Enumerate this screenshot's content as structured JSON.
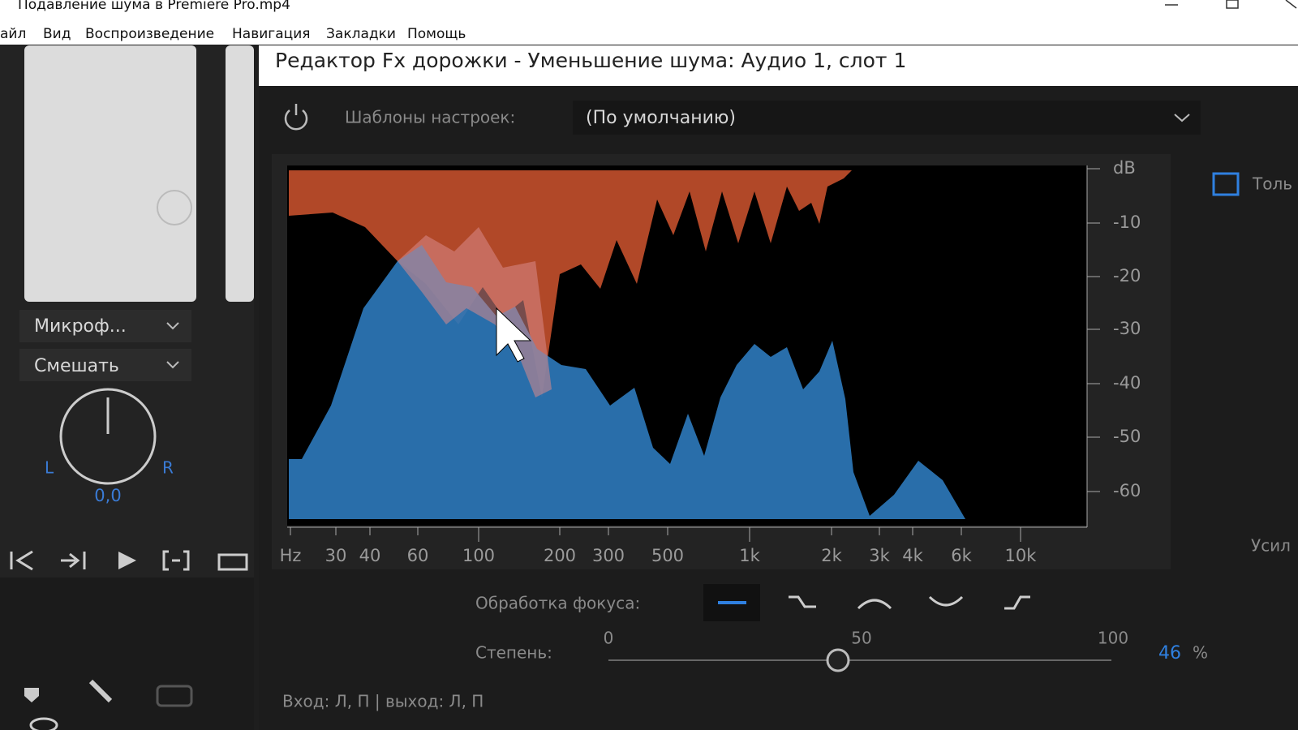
{
  "window": {
    "title": "Подавление шума в Premiere Pro.mp4"
  },
  "menu": [
    "айл",
    "Вид",
    "Воспроизведение",
    "Навигация",
    "Закладки",
    "Помощь"
  ],
  "left_panel": {
    "input_dropdown": "Микроф...",
    "mode_dropdown": "Смешать",
    "pan_left": "L",
    "pan_right": "R",
    "pan_value": "0,0"
  },
  "editor": {
    "title": "Редактор Fx дорожки - Уменьшение шума: Аудио 1, слот 1",
    "presets_label": "Шаблоны настроек:",
    "preset_value": "(По умолчанию)",
    "spectrum": {
      "db_labels": [
        "dB",
        "-10",
        "-20",
        "-30",
        "-40",
        "-50",
        "-60"
      ],
      "hz_labels": [
        "Hz",
        "30",
        "40",
        "60",
        "100",
        "200",
        "300",
        "500",
        "1k",
        "2k",
        "3k",
        "4k",
        "6k",
        "10k"
      ]
    },
    "checkbox_label": "Толь",
    "side_label": "Усил",
    "focus_label": "Обработка фокуса:",
    "amount_label": "Степень:",
    "slider": {
      "min_label": "0",
      "mid_label": "50",
      "max_label": "100"
    },
    "amount_value": "46",
    "amount_unit": "%",
    "io_label": "Вход: Л, П | выход: Л, П"
  }
}
